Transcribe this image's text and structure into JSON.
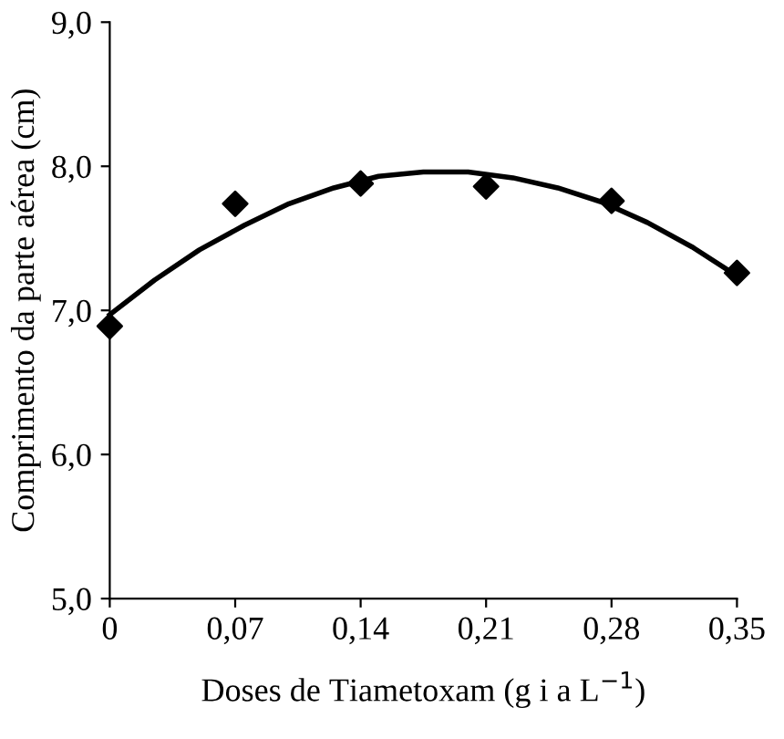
{
  "chart_data": {
    "type": "scatter",
    "xlabel": "Doses de Tiametoxam (g i a L$^{−1}$)",
    "ylabel": "Comprimento da parte aérea (cm)",
    "x": [
      0,
      0.07,
      0.14,
      0.21,
      0.28,
      0.35
    ],
    "series": [
      {
        "color": "#000000",
        "marker": "diamond",
        "values": [
          6.89,
          7.74,
          7.88,
          7.86,
          7.76,
          7.26
        ]
      },
      {
        "type": "line",
        "color": "#000000",
        "marker": "none",
        "line_style": "solid",
        "x": [
          0,
          0.025,
          0.05,
          0.075,
          0.1,
          0.125,
          0.15,
          0.175,
          0.2,
          0.225,
          0.25,
          0.275,
          0.3,
          0.325,
          0.35
        ],
        "values": [
          6.97,
          7.21,
          7.42,
          7.59,
          7.74,
          7.85,
          7.93,
          7.96,
          7.96,
          7.92,
          7.85,
          7.75,
          7.61,
          7.44,
          7.24
        ]
      }
    ],
    "xlim": [
      0,
      0.35
    ],
    "xticks": [
      {
        "value": 0,
        "label": "0"
      },
      {
        "value": 0.07,
        "label": "0,07"
      },
      {
        "value": 0.14,
        "label": "0,14"
      },
      {
        "value": 0.21,
        "label": "0,21"
      },
      {
        "value": 0.28,
        "label": "0,28"
      },
      {
        "value": 0.35,
        "label": "0,35"
      }
    ],
    "ylim": [
      5,
      9
    ],
    "yticks": [
      {
        "value": 5,
        "label": "5,0"
      },
      {
        "value": 6,
        "label": "6,0"
      },
      {
        "value": 7,
        "label": "7,0"
      },
      {
        "value": 8,
        "label": "8,0"
      },
      {
        "value": 9,
        "label": "9,0"
      }
    ],
    "grid": false,
    "legend": false
  }
}
